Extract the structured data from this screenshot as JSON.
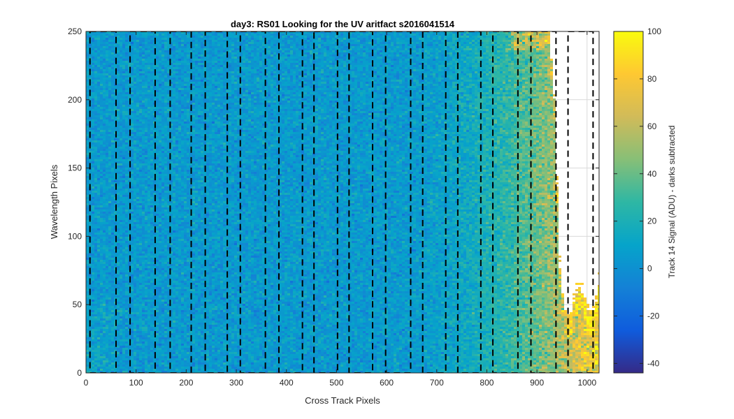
{
  "chart_data": {
    "type": "heatmap",
    "title": "day3: RS01  Looking for the UV aritfact  s2016041514",
    "xlabel": "Cross Track Pixels",
    "ylabel": "Wavelength Pixels",
    "xlim": [
      0,
      1024
    ],
    "ylim": [
      0,
      250
    ],
    "x_ticks": [
      0,
      100,
      200,
      300,
      400,
      500,
      600,
      700,
      800,
      900,
      1000
    ],
    "y_ticks": [
      0,
      50,
      100,
      150,
      200,
      250
    ],
    "grid": true,
    "colormap": "parula",
    "colorbar": {
      "label": "Track 14 Signal (ADU) - darks subtracted",
      "clim": [
        -44,
        100
      ],
      "ticks": [
        -40,
        -20,
        0,
        20,
        40,
        60,
        80,
        100
      ]
    },
    "background_level_adu": 5,
    "signal_cutoff_profile": {
      "x": [
        925,
        935,
        945,
        955,
        965,
        975,
        985,
        995,
        1005,
        1015,
        1024
      ],
      "wavelength_max": [
        250,
        200,
        80,
        45,
        35,
        55,
        60,
        55,
        40,
        45,
        65
      ]
    },
    "dashed_regions_x": [
      8,
      60,
      88,
      138,
      168,
      210,
      238,
      282,
      308,
      358,
      385,
      432,
      455,
      502,
      525,
      572,
      598,
      648,
      672,
      718,
      742,
      788,
      812,
      862,
      888,
      938,
      962,
      1012
    ],
    "dashed_regions_top": 250
  },
  "colors": {
    "colormap_stops": [
      "#352a87",
      "#0f5cdd",
      "#1481d6",
      "#06a4ca",
      "#2eb7a4",
      "#87bf77",
      "#d1bb59",
      "#fec832",
      "#f9fb0e"
    ],
    "dashed_line": "#000000",
    "grid": "#d9d9d9",
    "axes": "#262626"
  }
}
